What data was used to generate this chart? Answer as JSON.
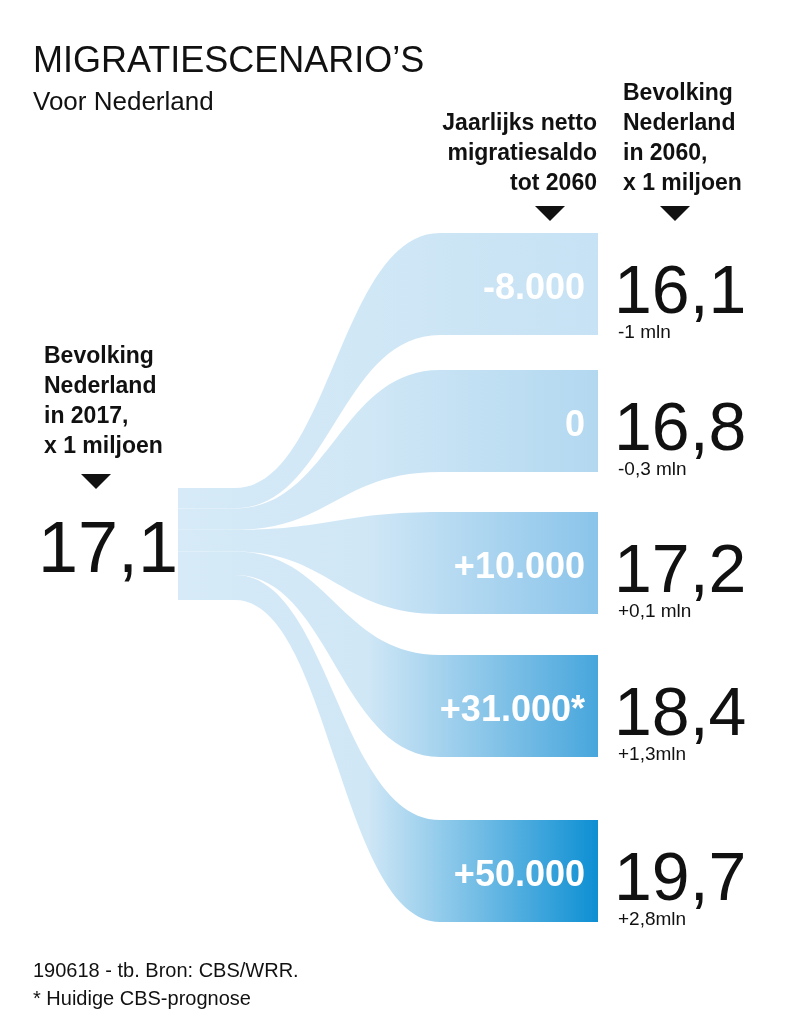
{
  "chart_data": {
    "type": "other",
    "title": "MIGRATIESCENARIO’S",
    "subtitle": "Voor Nederland",
    "xlabel": "Jaarlijks netto migratiesaldo tot 2060",
    "ylabel": "Bevolking Nederland in 2060, x 1 miljoen",
    "categories": [
      "-8.000",
      "0",
      "+10.000",
      "+31.000*",
      "+50.000"
    ],
    "values": [
      16.1,
      16.8,
      17.2,
      18.4,
      19.7
    ],
    "value_labels": [
      "16,1",
      "16,8",
      "17,2",
      "18,4",
      "19,7"
    ],
    "colors": [
      "#c6e2f4",
      "#b2d8f0",
      "#8ac4ea",
      "#47a6dc",
      "#0d8fd3"
    ],
    "annotations": [
      {
        "text": "-1 mln",
        "x": "-8.000"
      },
      {
        "text": "-0,3 mln",
        "x": "0"
      },
      {
        "text": "+0,1 mln",
        "x": "+10.000"
      },
      {
        "text": "+1,3mln",
        "x": "+31.000*"
      },
      {
        "text": "+2,8mln",
        "x": "+50.000"
      },
      "Bevolking Nederland in 2017, x 1 miljoen",
      "17,1",
      "190618 - tb. Bron: CBS/WRR.",
      "* Huidige CBS-prognose"
    ]
  }
}
